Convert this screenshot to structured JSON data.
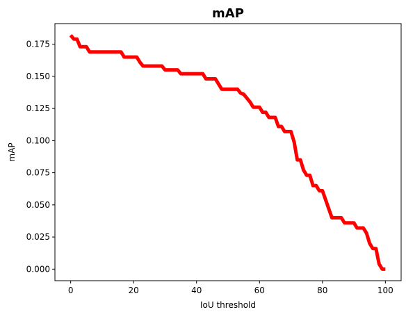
{
  "chart_data": {
    "type": "line",
    "title": "mAP",
    "xlabel": "IoU threshold",
    "ylabel": "mAP",
    "xlim": [
      -5,
      105
    ],
    "ylim": [
      -0.009,
      0.191
    ],
    "xticks": [
      0,
      20,
      40,
      60,
      80,
      100
    ],
    "xtick_labels": [
      "0",
      "20",
      "40",
      "60",
      "80",
      "100"
    ],
    "yticks": [
      0.0,
      0.025,
      0.05,
      0.075,
      0.1,
      0.125,
      0.15,
      0.175
    ],
    "ytick_labels": [
      "0.000",
      "0.025",
      "0.050",
      "0.075",
      "0.100",
      "0.125",
      "0.150",
      "0.175"
    ],
    "grid": false,
    "series": [
      {
        "color": "#ff0000",
        "x": [
          0,
          1,
          2,
          3,
          4,
          5,
          6,
          7,
          8,
          9,
          10,
          11,
          12,
          13,
          14,
          15,
          16,
          17,
          18,
          19,
          20,
          21,
          22,
          23,
          24,
          25,
          26,
          27,
          28,
          29,
          30,
          31,
          32,
          33,
          34,
          35,
          36,
          37,
          38,
          39,
          40,
          41,
          42,
          43,
          44,
          45,
          46,
          47,
          48,
          49,
          50,
          51,
          52,
          53,
          54,
          55,
          56,
          57,
          58,
          59,
          60,
          61,
          62,
          63,
          64,
          65,
          66,
          67,
          68,
          69,
          70,
          71,
          72,
          73,
          74,
          75,
          76,
          77,
          78,
          79,
          80,
          81,
          82,
          83,
          84,
          85,
          86,
          87,
          88,
          89,
          90,
          91,
          92,
          93,
          94,
          95,
          96,
          97,
          98,
          99,
          100
        ],
        "y": [
          0.182,
          0.179,
          0.179,
          0.173,
          0.173,
          0.173,
          0.169,
          0.169,
          0.169,
          0.169,
          0.169,
          0.169,
          0.169,
          0.169,
          0.169,
          0.169,
          0.169,
          0.165,
          0.165,
          0.165,
          0.165,
          0.165,
          0.161,
          0.158,
          0.158,
          0.158,
          0.158,
          0.158,
          0.158,
          0.158,
          0.155,
          0.155,
          0.155,
          0.155,
          0.155,
          0.152,
          0.152,
          0.152,
          0.152,
          0.152,
          0.152,
          0.152,
          0.152,
          0.148,
          0.148,
          0.148,
          0.148,
          0.144,
          0.14,
          0.14,
          0.14,
          0.14,
          0.14,
          0.14,
          0.137,
          0.136,
          0.133,
          0.13,
          0.126,
          0.126,
          0.126,
          0.122,
          0.122,
          0.118,
          0.118,
          0.118,
          0.111,
          0.111,
          0.107,
          0.107,
          0.107,
          0.099,
          0.085,
          0.085,
          0.077,
          0.073,
          0.073,
          0.065,
          0.065,
          0.061,
          0.061,
          0.054,
          0.047,
          0.04,
          0.04,
          0.04,
          0.04,
          0.036,
          0.036,
          0.036,
          0.036,
          0.032,
          0.032,
          0.032,
          0.028,
          0.02,
          0.016,
          0.016,
          0.004,
          0.0,
          0.0
        ]
      }
    ]
  }
}
